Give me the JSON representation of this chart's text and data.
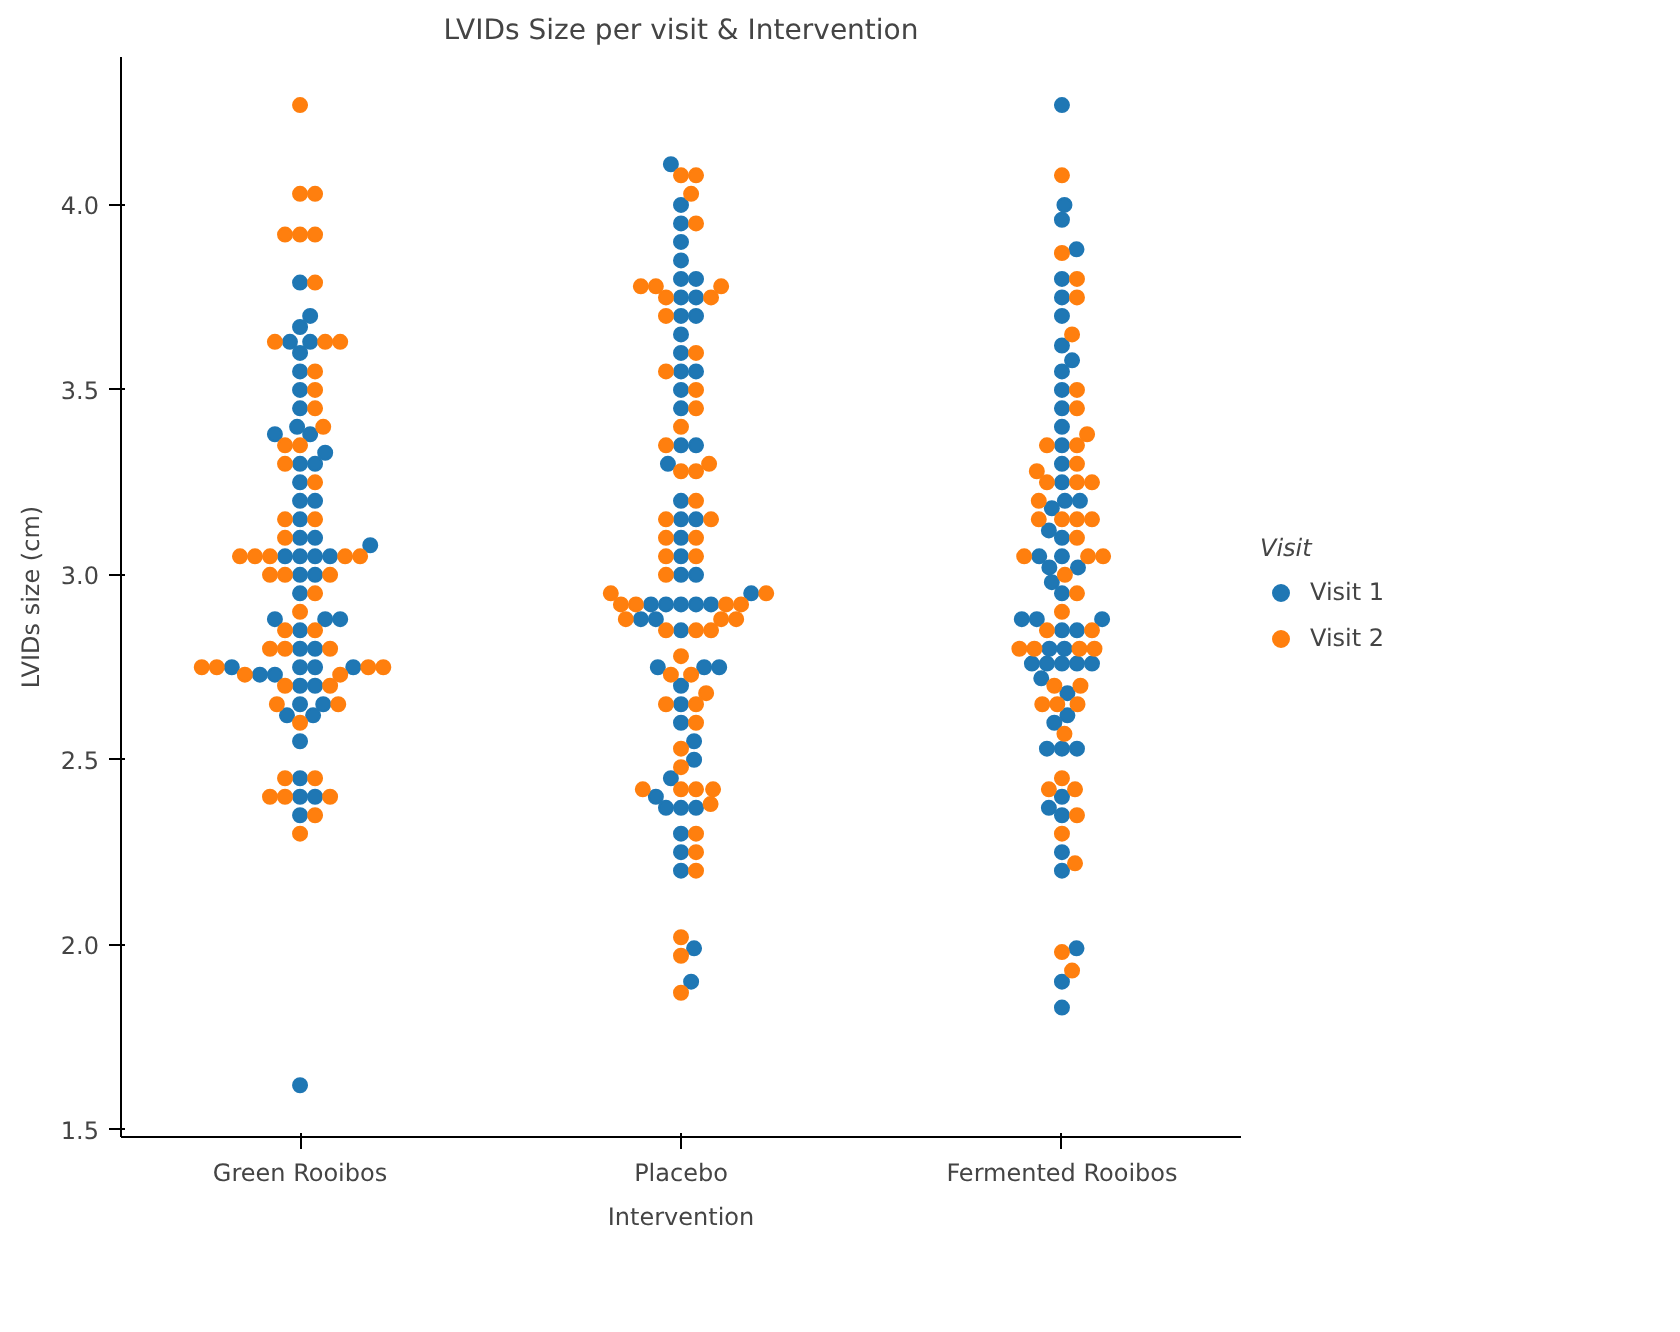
{
  "chart_data": {
    "type": "scatter",
    "title": "LVIDs Size per visit & Intervention",
    "xlabel": "Intervention",
    "ylabel": "LVIDs size (cm)",
    "legend_title": "Visit",
    "legend": "right",
    "grid": false,
    "marker": "circle",
    "categories": [
      "Green Rooibos",
      "Placebo",
      "Fermented Rooibos"
    ],
    "ylim": [
      1.48,
      4.4
    ],
    "yticks": [
      {
        "value": 1.5,
        "label": "1.5"
      },
      {
        "value": 2.0,
        "label": "2.0"
      },
      {
        "value": 2.5,
        "label": "2.5"
      },
      {
        "value": 3.0,
        "label": "3.0"
      },
      {
        "value": 3.5,
        "label": "3.5"
      },
      {
        "value": 4.0,
        "label": "4.0"
      }
    ],
    "series": [
      {
        "name": "Visit 1",
        "color": "#1f77b4",
        "x": [
          "Green Rooibos",
          "Green Rooibos",
          "Green Rooibos",
          "Green Rooibos",
          "Green Rooibos",
          "Green Rooibos",
          "Green Rooibos",
          "Green Rooibos",
          "Green Rooibos",
          "Green Rooibos",
          "Green Rooibos",
          "Green Rooibos",
          "Green Rooibos",
          "Green Rooibos",
          "Green Rooibos",
          "Green Rooibos",
          "Green Rooibos",
          "Green Rooibos",
          "Green Rooibos",
          "Green Rooibos",
          "Green Rooibos",
          "Green Rooibos",
          "Green Rooibos",
          "Green Rooibos",
          "Green Rooibos",
          "Green Rooibos",
          "Green Rooibos",
          "Green Rooibos",
          "Green Rooibos",
          "Green Rooibos",
          "Green Rooibos",
          "Green Rooibos",
          "Green Rooibos",
          "Green Rooibos",
          "Green Rooibos",
          "Green Rooibos",
          "Green Rooibos",
          "Green Rooibos",
          "Green Rooibos",
          "Green Rooibos",
          "Green Rooibos",
          "Green Rooibos",
          "Green Rooibos",
          "Green Rooibos",
          "Green Rooibos",
          "Green Rooibos",
          "Green Rooibos",
          "Green Rooibos",
          "Green Rooibos",
          "Green Rooibos",
          "Green Rooibos",
          "Green Rooibos",
          "Green Rooibos",
          "Placebo",
          "Placebo",
          "Placebo",
          "Placebo",
          "Placebo",
          "Placebo",
          "Placebo",
          "Placebo",
          "Placebo",
          "Placebo",
          "Placebo",
          "Placebo",
          "Placebo",
          "Placebo",
          "Placebo",
          "Placebo",
          "Placebo",
          "Placebo",
          "Placebo",
          "Placebo",
          "Placebo",
          "Placebo",
          "Placebo",
          "Placebo",
          "Placebo",
          "Placebo",
          "Placebo",
          "Placebo",
          "Placebo",
          "Placebo",
          "Placebo",
          "Placebo",
          "Placebo",
          "Placebo",
          "Placebo",
          "Placebo",
          "Placebo",
          "Placebo",
          "Placebo",
          "Placebo",
          "Placebo",
          "Placebo",
          "Placebo",
          "Placebo",
          "Placebo",
          "Placebo",
          "Placebo",
          "Placebo",
          "Placebo",
          "Placebo",
          "Placebo",
          "Placebo",
          "Placebo",
          "Placebo",
          "Fermented Rooibos",
          "Fermented Rooibos",
          "Fermented Rooibos",
          "Fermented Rooibos",
          "Fermented Rooibos",
          "Fermented Rooibos",
          "Fermented Rooibos",
          "Fermented Rooibos",
          "Fermented Rooibos",
          "Fermented Rooibos",
          "Fermented Rooibos",
          "Fermented Rooibos",
          "Fermented Rooibos",
          "Fermented Rooibos",
          "Fermented Rooibos",
          "Fermented Rooibos",
          "Fermented Rooibos",
          "Fermented Rooibos",
          "Fermented Rooibos",
          "Fermented Rooibos",
          "Fermented Rooibos",
          "Fermented Rooibos",
          "Fermented Rooibos",
          "Fermented Rooibos",
          "Fermented Rooibos",
          "Fermented Rooibos",
          "Fermented Rooibos",
          "Fermented Rooibos",
          "Fermented Rooibos",
          "Fermented Rooibos",
          "Fermented Rooibos",
          "Fermented Rooibos",
          "Fermented Rooibos",
          "Fermented Rooibos",
          "Fermented Rooibos",
          "Fermented Rooibos",
          "Fermented Rooibos",
          "Fermented Rooibos",
          "Fermented Rooibos",
          "Fermented Rooibos",
          "Fermented Rooibos",
          "Fermented Rooibos",
          "Fermented Rooibos",
          "Fermented Rooibos",
          "Fermented Rooibos",
          "Fermented Rooibos",
          "Fermented Rooibos",
          "Fermented Rooibos",
          "Fermented Rooibos",
          "Fermented Rooibos",
          "Fermented Rooibos",
          "Fermented Rooibos",
          "Fermented Rooibos",
          "Fermented Rooibos"
        ],
        "values": [
          3.79,
          3.7,
          3.67,
          3.63,
          3.63,
          3.6,
          3.55,
          3.5,
          3.45,
          3.4,
          3.38,
          3.38,
          3.33,
          3.3,
          3.3,
          3.25,
          3.2,
          3.2,
          3.15,
          3.1,
          3.1,
          3.08,
          3.05,
          3.05,
          3.05,
          3.05,
          3.0,
          3.0,
          2.95,
          2.88,
          2.88,
          2.88,
          2.85,
          2.8,
          2.8,
          2.75,
          2.75,
          2.75,
          2.75,
          2.73,
          2.73,
          2.7,
          2.7,
          2.65,
          2.65,
          2.62,
          2.62,
          2.55,
          2.45,
          2.4,
          2.4,
          2.35,
          1.62,
          4.11,
          4.0,
          3.95,
          3.9,
          3.85,
          3.8,
          3.8,
          3.75,
          3.75,
          3.7,
          3.7,
          3.65,
          3.6,
          3.55,
          3.55,
          3.5,
          3.45,
          3.35,
          3.35,
          3.3,
          3.2,
          3.15,
          3.15,
          3.1,
          3.05,
          3.0,
          3.0,
          2.95,
          2.92,
          2.92,
          2.92,
          2.92,
          2.92,
          2.88,
          2.88,
          2.85,
          2.75,
          2.75,
          2.75,
          2.7,
          2.65,
          2.6,
          2.55,
          2.5,
          2.45,
          2.4,
          2.37,
          2.37,
          2.37,
          2.3,
          2.25,
          2.2,
          1.99,
          1.9,
          1.9,
          4.27,
          4.0,
          3.96,
          3.88,
          3.8,
          3.75,
          3.7,
          3.62,
          3.58,
          3.55,
          3.5,
          3.45,
          3.4,
          3.35,
          3.3,
          3.25,
          3.2,
          3.2,
          3.18,
          3.12,
          3.1,
          3.05,
          3.05,
          3.02,
          3.02,
          2.98,
          2.95,
          2.88,
          2.88,
          2.88,
          2.85,
          2.85,
          2.8,
          2.8,
          2.76,
          2.76,
          2.76,
          2.76,
          2.76,
          2.72,
          2.68,
          2.62,
          2.6,
          2.53,
          2.53,
          2.53,
          2.4,
          2.37,
          2.35,
          2.25,
          2.2,
          1.99,
          1.83
        ]
      },
      {
        "name": "Visit 2",
        "color": "#ff7f0e",
        "x": [
          "Green Rooibos",
          "Green Rooibos",
          "Green Rooibos",
          "Green Rooibos",
          "Green Rooibos",
          "Green Rooibos",
          "Green Rooibos",
          "Green Rooibos",
          "Green Rooibos",
          "Green Rooibos",
          "Green Rooibos",
          "Green Rooibos",
          "Green Rooibos",
          "Green Rooibos",
          "Green Rooibos",
          "Green Rooibos",
          "Green Rooibos",
          "Green Rooibos",
          "Green Rooibos",
          "Green Rooibos",
          "Green Rooibos",
          "Green Rooibos",
          "Green Rooibos",
          "Green Rooibos",
          "Green Rooibos",
          "Green Rooibos",
          "Green Rooibos",
          "Green Rooibos",
          "Green Rooibos",
          "Green Rooibos",
          "Green Rooibos",
          "Green Rooibos",
          "Green Rooibos",
          "Green Rooibos",
          "Green Rooibos",
          "Green Rooibos",
          "Green Rooibos",
          "Green Rooibos",
          "Green Rooibos",
          "Green Rooibos",
          "Green Rooibos",
          "Green Rooibos",
          "Green Rooibos",
          "Green Rooibos",
          "Green Rooibos",
          "Green Rooibos",
          "Green Rooibos",
          "Green Rooibos",
          "Green Rooibos",
          "Green Rooibos",
          "Green Rooibos",
          "Green Rooibos",
          "Green Rooibos",
          "Green Rooibos",
          "Placebo",
          "Placebo",
          "Placebo",
          "Placebo",
          "Placebo",
          "Placebo",
          "Placebo",
          "Placebo",
          "Placebo",
          "Placebo",
          "Placebo",
          "Placebo",
          "Placebo",
          "Placebo",
          "Placebo",
          "Placebo",
          "Placebo",
          "Placebo",
          "Placebo",
          "Placebo",
          "Placebo",
          "Placebo",
          "Placebo",
          "Placebo",
          "Placebo",
          "Placebo",
          "Placebo",
          "Placebo",
          "Placebo",
          "Placebo",
          "Placebo",
          "Placebo",
          "Placebo",
          "Placebo",
          "Placebo",
          "Placebo",
          "Placebo",
          "Placebo",
          "Placebo",
          "Placebo",
          "Placebo",
          "Placebo",
          "Placebo",
          "Placebo",
          "Placebo",
          "Placebo",
          "Placebo",
          "Placebo",
          "Placebo",
          "Placebo",
          "Placebo",
          "Placebo",
          "Placebo",
          "Placebo",
          "Placebo",
          "Placebo",
          "Placebo",
          "Placebo",
          "Placebo",
          "Fermented Rooibos",
          "Fermented Rooibos",
          "Fermented Rooibos",
          "Fermented Rooibos",
          "Fermented Rooibos",
          "Fermented Rooibos",
          "Fermented Rooibos",
          "Fermented Rooibos",
          "Fermented Rooibos",
          "Fermented Rooibos",
          "Fermented Rooibos",
          "Fermented Rooibos",
          "Fermented Rooibos",
          "Fermented Rooibos",
          "Fermented Rooibos",
          "Fermented Rooibos",
          "Fermented Rooibos",
          "Fermented Rooibos",
          "Fermented Rooibos",
          "Fermented Rooibos",
          "Fermented Rooibos",
          "Fermented Rooibos",
          "Fermented Rooibos",
          "Fermented Rooibos",
          "Fermented Rooibos",
          "Fermented Rooibos",
          "Fermented Rooibos",
          "Fermented Rooibos",
          "Fermented Rooibos",
          "Fermented Rooibos",
          "Fermented Rooibos",
          "Fermented Rooibos",
          "Fermented Rooibos",
          "Fermented Rooibos",
          "Fermented Rooibos",
          "Fermented Rooibos",
          "Fermented Rooibos",
          "Fermented Rooibos",
          "Fermented Rooibos",
          "Fermented Rooibos",
          "Fermented Rooibos",
          "Fermented Rooibos",
          "Fermented Rooibos",
          "Fermented Rooibos",
          "Fermented Rooibos",
          "Fermented Rooibos",
          "Fermented Rooibos"
        ],
        "values": [
          4.27,
          4.03,
          4.03,
          3.92,
          3.92,
          3.92,
          3.79,
          3.63,
          3.63,
          3.63,
          3.55,
          3.5,
          3.45,
          3.4,
          3.35,
          3.35,
          3.3,
          3.25,
          3.15,
          3.15,
          3.1,
          3.05,
          3.05,
          3.05,
          3.05,
          3.05,
          3.0,
          3.0,
          3.0,
          2.95,
          2.9,
          2.85,
          2.85,
          2.8,
          2.8,
          2.8,
          2.75,
          2.75,
          2.75,
          2.75,
          2.73,
          2.73,
          2.7,
          2.7,
          2.65,
          2.65,
          2.6,
          2.45,
          2.45,
          2.4,
          2.4,
          2.4,
          2.35,
          2.3,
          4.08,
          4.08,
          4.03,
          3.95,
          3.78,
          3.78,
          3.78,
          3.75,
          3.75,
          3.7,
          3.6,
          3.55,
          3.5,
          3.45,
          3.4,
          3.35,
          3.3,
          3.28,
          3.28,
          3.2,
          3.15,
          3.15,
          3.1,
          3.1,
          3.05,
          3.05,
          3.0,
          2.95,
          2.95,
          2.92,
          2.92,
          2.92,
          2.92,
          2.88,
          2.88,
          2.88,
          2.85,
          2.85,
          2.85,
          2.78,
          2.73,
          2.73,
          2.68,
          2.65,
          2.65,
          2.6,
          2.53,
          2.48,
          2.42,
          2.42,
          2.42,
          2.42,
          2.38,
          2.3,
          2.25,
          2.2,
          2.02,
          1.97,
          1.87,
          4.08,
          3.87,
          3.8,
          3.75,
          3.65,
          3.5,
          3.45,
          3.38,
          3.35,
          3.35,
          3.3,
          3.28,
          3.25,
          3.25,
          3.25,
          3.2,
          3.15,
          3.15,
          3.15,
          3.15,
          3.1,
          3.05,
          3.05,
          3.05,
          3.0,
          2.95,
          2.9,
          2.85,
          2.85,
          2.8,
          2.8,
          2.8,
          2.8,
          2.7,
          2.7,
          2.65,
          2.65,
          2.65,
          2.57,
          2.45,
          2.42,
          2.42,
          2.35,
          2.3,
          2.22,
          1.98,
          1.93
        ]
      }
    ]
  }
}
